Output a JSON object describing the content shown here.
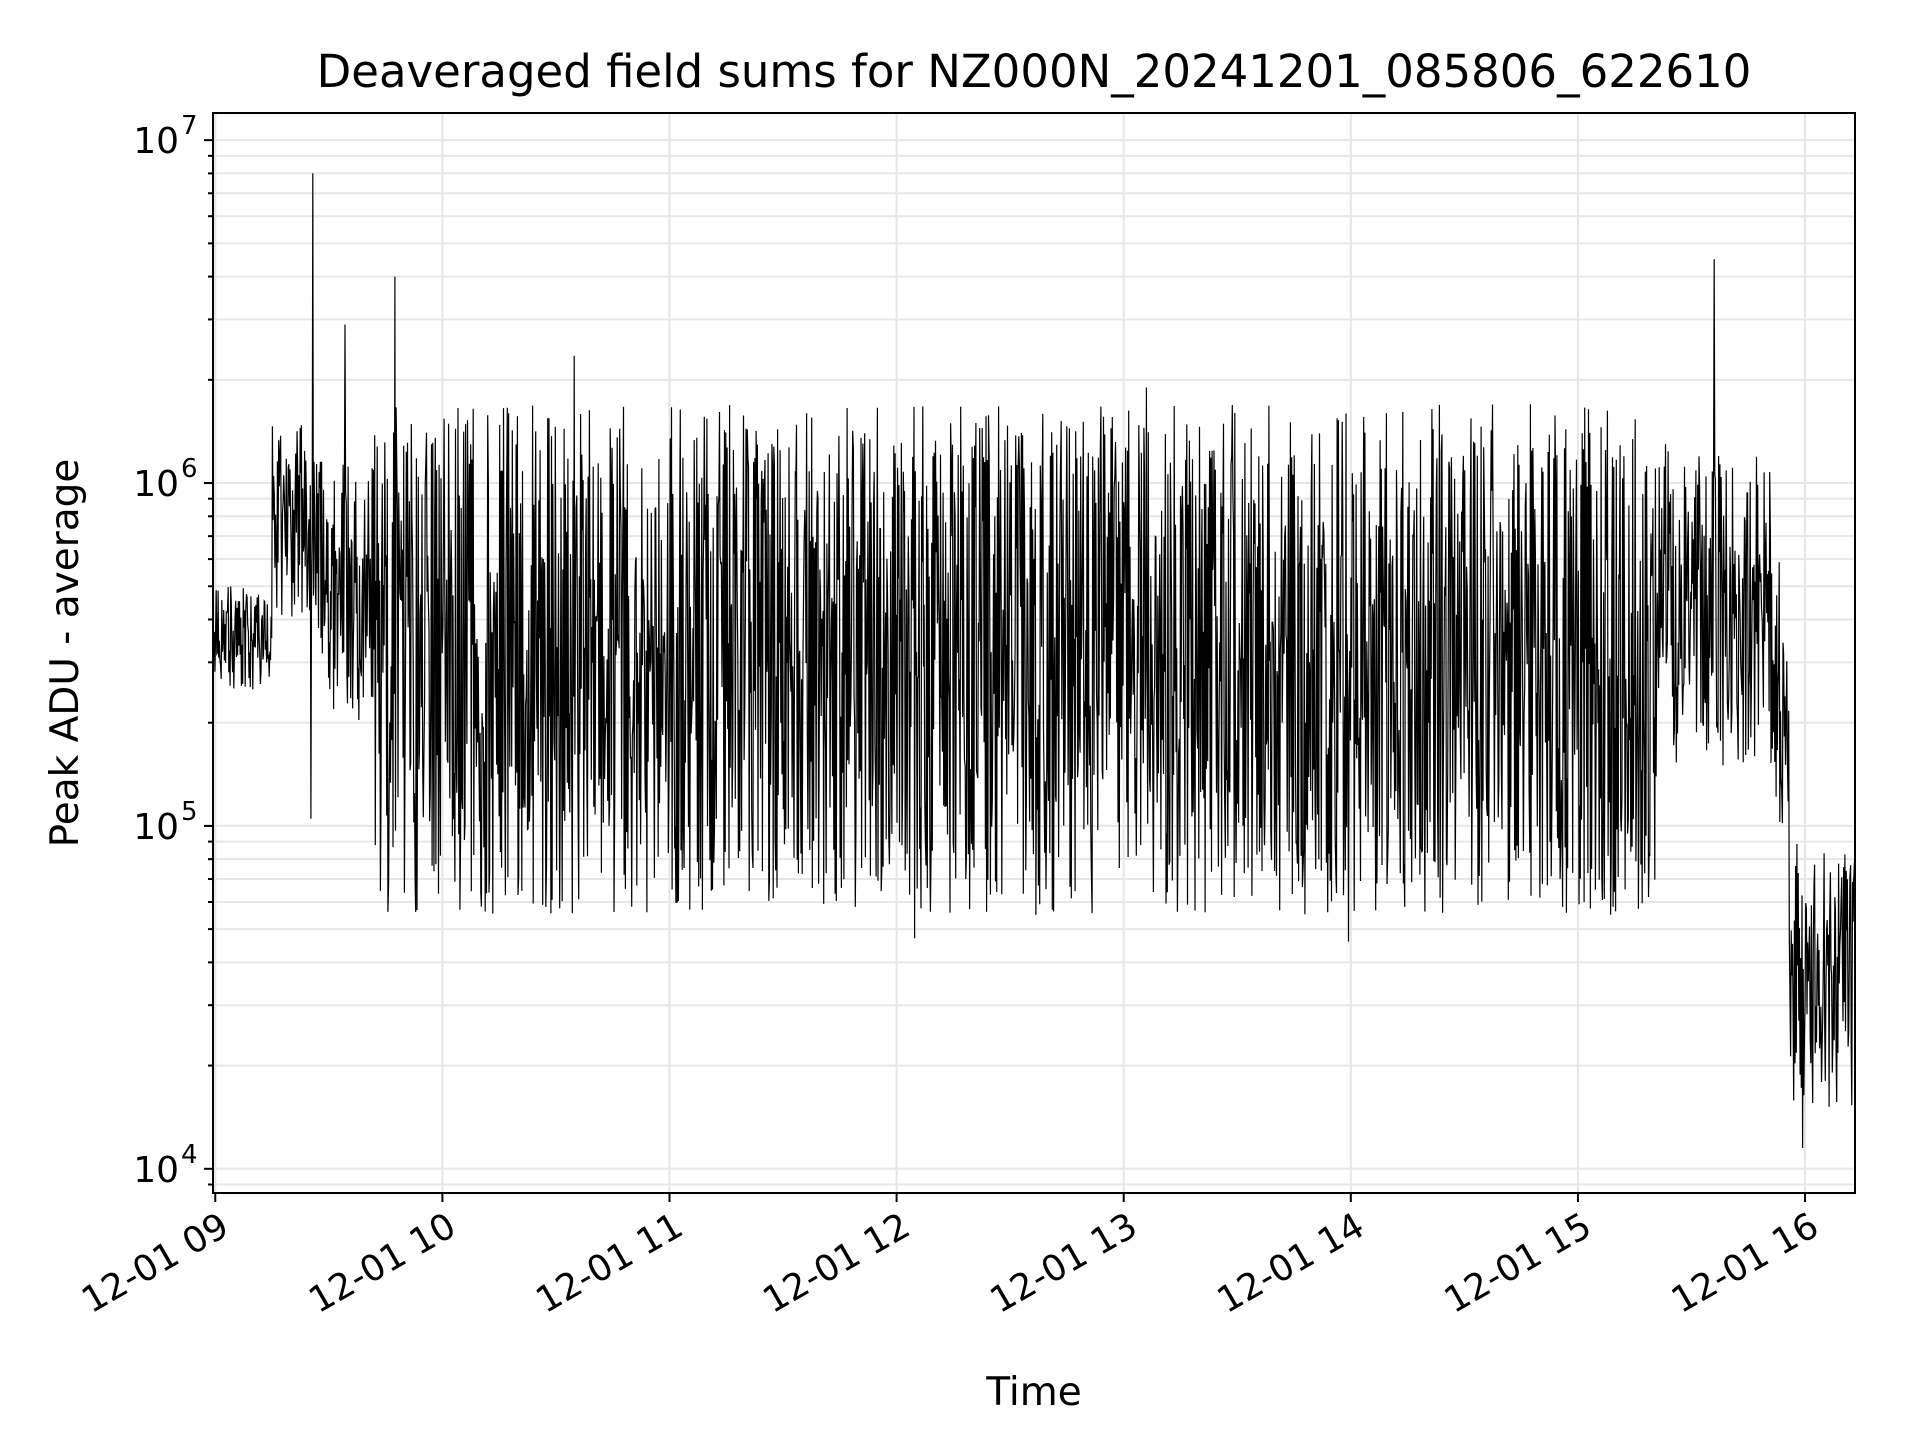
{
  "chart_data": {
    "type": "line",
    "title": "Deaveraged field sums for NZ000N_20241201_085806_622610",
    "xlabel": "Time",
    "ylabel": "Peak ADU - average",
    "yscale": "log",
    "ylim": [
      8500,
      12000000
    ],
    "xlim_hours": [
      8.99,
      16.22
    ],
    "x_tick_labels": [
      "12-01 09",
      "12-01 10",
      "12-01 11",
      "12-01 12",
      "12-01 13",
      "12-01 14",
      "12-01 15",
      "12-01 16"
    ],
    "x_tick_hours": [
      9,
      10,
      11,
      12,
      13,
      14,
      15,
      16
    ],
    "y_tick_labels": [
      {
        "base": "10",
        "exp": "4",
        "value": 10000
      },
      {
        "base": "10",
        "exp": "5",
        "value": 100000
      },
      {
        "base": "10",
        "exp": "6",
        "value": 1000000
      },
      {
        "base": "10",
        "exp": "7",
        "value": 10000000
      }
    ],
    "grid": true,
    "line_color": "#000000",
    "grid_color": "#e6e6e6",
    "series": [
      {
        "spikes": [
          {
            "hour": 9.43,
            "value": 8000000
          },
          {
            "hour": 9.42,
            "value": 105000
          },
          {
            "hour": 9.79,
            "value": 4000000
          },
          {
            "hour": 9.57,
            "value": 2900000
          },
          {
            "hour": 15.6,
            "value": 4500000
          },
          {
            "hour": 10.58,
            "value": 2350000
          },
          {
            "hour": 12.08,
            "value": 47000
          },
          {
            "hour": 13.1,
            "value": 1900000
          },
          {
            "hour": 13.99,
            "value": 46000
          },
          {
            "hour": 15.99,
            "value": 11500
          }
        ],
        "segments": [
          {
            "from_hour": 8.99,
            "to_hour": 9.25,
            "low": 250000,
            "high": 500000
          },
          {
            "from_hour": 9.25,
            "to_hour": 9.45,
            "low": 400000,
            "high": 1500000
          },
          {
            "from_hour": 9.45,
            "to_hour": 9.7,
            "low": 200000,
            "high": 1200000
          },
          {
            "from_hour": 9.7,
            "to_hour": 15.35,
            "low": 55000,
            "high": 1700000
          },
          {
            "from_hour": 15.35,
            "to_hour": 15.85,
            "low": 150000,
            "high": 1300000
          },
          {
            "from_hour": 15.85,
            "to_hour": 15.93,
            "low": 100000,
            "high": 600000
          },
          {
            "from_hour": 15.93,
            "to_hour": 16.22,
            "low": 15000,
            "high": 90000
          }
        ]
      }
    ]
  }
}
